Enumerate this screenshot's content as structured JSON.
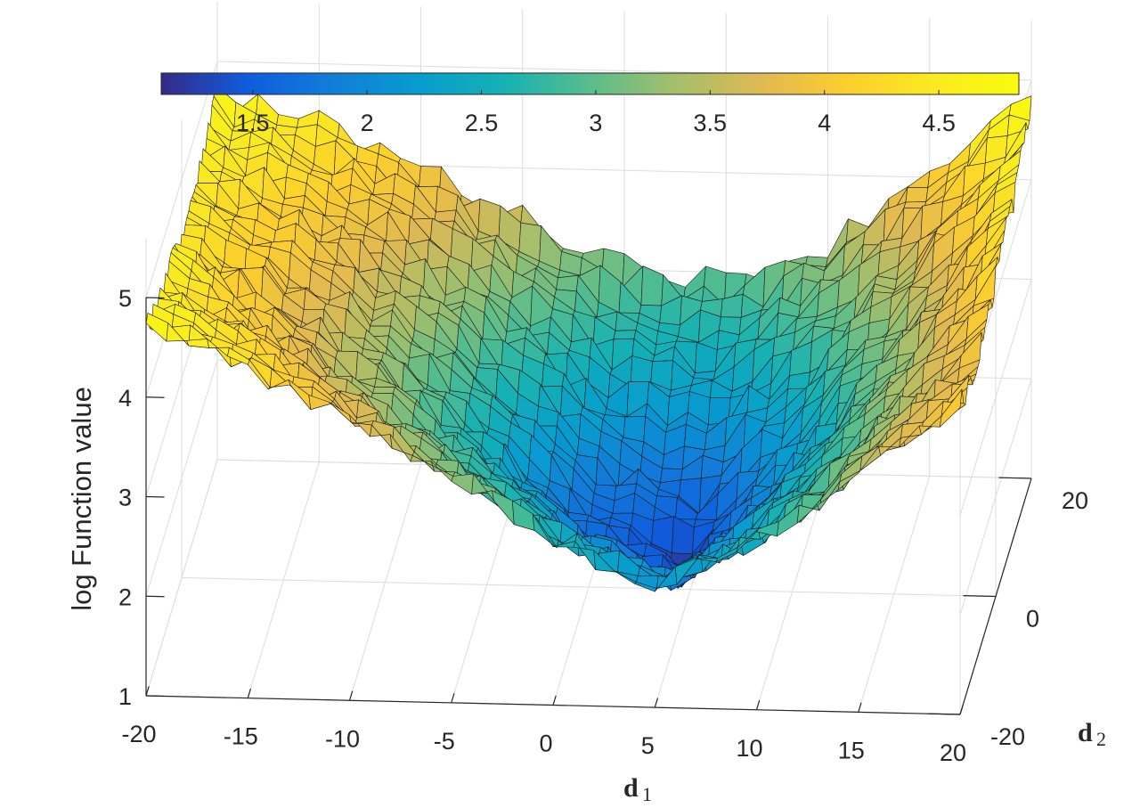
{
  "chart_data": {
    "type": "surface",
    "title": "",
    "xlabel": {
      "symbol": "d",
      "subscript": "1"
    },
    "ylabel": {
      "symbol": "d",
      "subscript": "2"
    },
    "zlabel": "log Function value",
    "xlim": [
      -20,
      20
    ],
    "ylim": [
      -20,
      20
    ],
    "zlim": [
      1,
      5
    ],
    "x_ticks": [
      -20,
      -15,
      -10,
      -5,
      0,
      5,
      10,
      15,
      20
    ],
    "y_ticks": [
      -20,
      0,
      20
    ],
    "z_ticks": [
      1,
      2,
      3,
      4,
      5
    ],
    "grid": true,
    "colormap": "parula",
    "colorbar": {
      "location": "top",
      "range": [
        1.1,
        4.85
      ],
      "ticks": [
        1.5,
        2,
        2.5,
        3,
        3.5,
        4,
        4.5
      ]
    },
    "surface_samples": {
      "description_of_axes": "rows = d2 from -20 to 20 step 5, columns = d1 from -20 to 20 step 5, values = log Function value",
      "d1": [
        -20,
        -15,
        -10,
        -5,
        0,
        5,
        10,
        15,
        20
      ],
      "d2": [
        -20,
        -15,
        -10,
        -5,
        0,
        5,
        10,
        15,
        20
      ],
      "z": [
        [
          4.7,
          4.3,
          3.8,
          3.3,
          2.7,
          2.2,
          2.7,
          3.4,
          4.1
        ],
        [
          4.6,
          4.2,
          3.6,
          3.0,
          2.4,
          2.0,
          2.5,
          3.3,
          4.0
        ],
        [
          4.5,
          4.0,
          3.4,
          2.8,
          2.1,
          1.7,
          2.4,
          3.2,
          4.0
        ],
        [
          4.5,
          3.9,
          3.3,
          2.6,
          1.8,
          1.4,
          2.3,
          3.2,
          4.1
        ],
        [
          4.4,
          3.9,
          3.3,
          2.6,
          1.6,
          1.3,
          2.2,
          3.2,
          4.2
        ],
        [
          4.4,
          4.0,
          3.4,
          2.7,
          1.9,
          1.6,
          2.4,
          3.3,
          4.3
        ],
        [
          4.5,
          4.1,
          3.6,
          2.9,
          2.3,
          2.1,
          2.7,
          3.5,
          4.4
        ],
        [
          4.6,
          4.2,
          3.8,
          3.2,
          2.7,
          2.5,
          3.0,
          3.8,
          4.6
        ],
        [
          4.7,
          4.4,
          4.0,
          3.5,
          3.1,
          2.9,
          3.3,
          4.1,
          4.8
        ]
      ]
    }
  }
}
